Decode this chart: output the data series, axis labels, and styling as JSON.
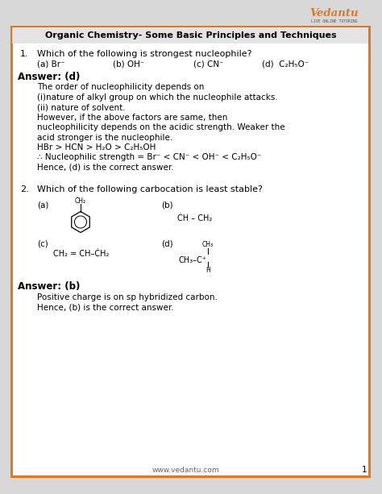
{
  "bg_color": "#f0f0f0",
  "border_color": "#e07820",
  "page_bg": "#dddddd",
  "title": "Organic Chemistry- Some Basic Principles and Techniques",
  "q1_text": "Which of the following is strongest nucleophile?",
  "q1_options": [
    "(a) Br⁻",
    "(b) OH⁻",
    "(c) CN⁻",
    "(d)  C₂H₅O⁻"
  ],
  "ans1_label": "Answer: (d)",
  "ans1_lines": [
    "The order of nucleophilicity depends on",
    "(i)nature of alkyl group on which the nucleophile attacks.",
    "(ii) nature of solvent.",
    "However, if the above factors are same, then",
    "nucleophilicity depends on the acidic strength. Weaker the",
    "acid stronger is the nucleophile.",
    "HBr > HCN > H₂O > C₂H₅OH",
    "∴ Nucleophilic strength = Br⁻ < CN⁻ < OH⁻ < C₂H₅O⁻",
    "Hence, (d) is the correct answer."
  ],
  "q2_text": "Which of the following carbocation is least stable?",
  "ans2_label": "Answer: (b)",
  "ans2_lines": [
    "Positive charge is on sp hybridized carbon.",
    "Hence, (b) is the correct answer."
  ],
  "footer": "www.vedantu.com",
  "page_num": "1",
  "vedantu_orange": "#e07820",
  "watermark_color": "#dcc8b0"
}
